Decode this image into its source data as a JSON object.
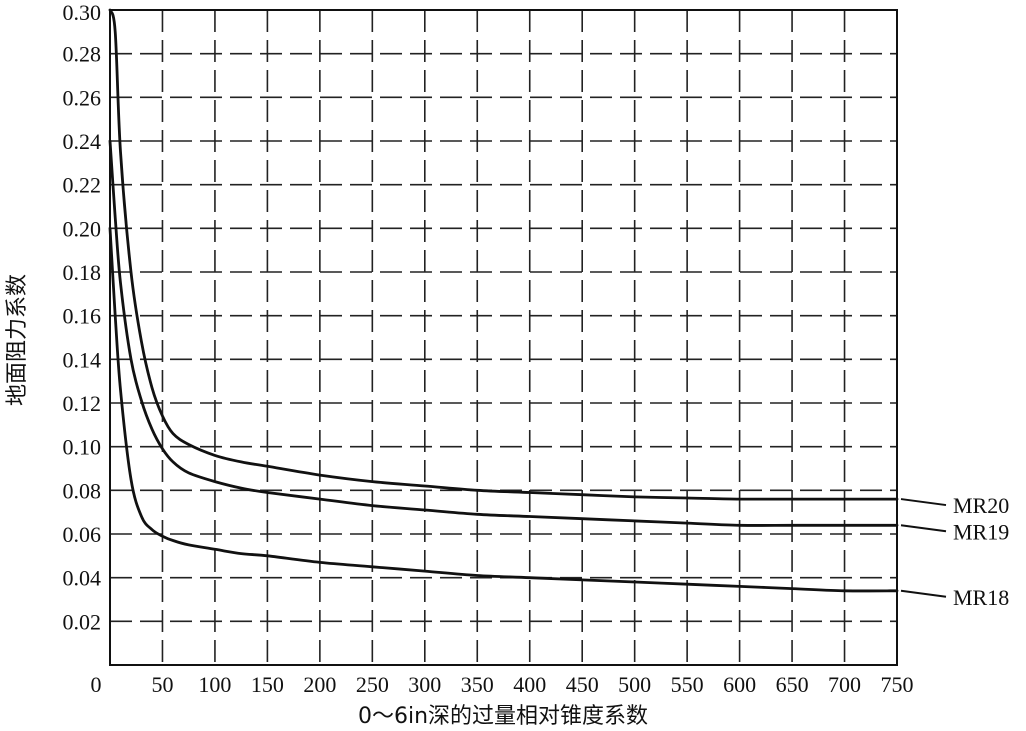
{
  "chart_data": {
    "type": "line",
    "xlabel": "0～6in深的过量相对锥度系数",
    "ylabel": "地面阻力系数",
    "xlim": [
      0,
      750
    ],
    "ylim": [
      0,
      0.3
    ],
    "x_ticks": [
      0,
      50,
      100,
      150,
      200,
      250,
      300,
      350,
      400,
      450,
      500,
      550,
      600,
      650,
      700,
      750
    ],
    "y_ticks": [
      0.02,
      0.04,
      0.06,
      0.08,
      0.1,
      0.12,
      0.14,
      0.16,
      0.18,
      0.2,
      0.22,
      0.24,
      0.26,
      0.28,
      0.3
    ],
    "x_tick_labels": [
      "0",
      "50",
      "100",
      "150",
      "200",
      "250",
      "300",
      "350",
      "400",
      "450",
      "500",
      "550",
      "600",
      "650",
      "700",
      "750"
    ],
    "y_tick_labels": [
      "0.02",
      "0.04",
      "0.06",
      "0.08",
      "0.10",
      "0.12",
      "0.14",
      "0.16",
      "0.18",
      "0.20",
      "0.22",
      "0.24",
      "0.26",
      "0.28",
      "0.30"
    ],
    "grid": true,
    "series": [
      {
        "name": "MR20",
        "x": [
          0,
          5,
          10,
          20,
          30,
          40,
          50,
          60,
          75,
          100,
          125,
          150,
          200,
          250,
          300,
          350,
          400,
          450,
          500,
          550,
          600,
          650,
          700,
          750
        ],
        "y": [
          0.3,
          0.29,
          0.235,
          0.18,
          0.148,
          0.127,
          0.114,
          0.106,
          0.101,
          0.096,
          0.093,
          0.091,
          0.087,
          0.084,
          0.082,
          0.08,
          0.079,
          0.078,
          0.077,
          0.0765,
          0.076,
          0.076,
          0.076,
          0.076
        ]
      },
      {
        "name": "MR19",
        "x": [
          0,
          5,
          10,
          20,
          30,
          40,
          50,
          60,
          75,
          100,
          125,
          150,
          200,
          250,
          300,
          350,
          400,
          450,
          500,
          550,
          600,
          650,
          700,
          750
        ],
        "y": [
          0.24,
          0.205,
          0.175,
          0.14,
          0.121,
          0.108,
          0.099,
          0.093,
          0.088,
          0.084,
          0.081,
          0.079,
          0.076,
          0.073,
          0.071,
          0.069,
          0.068,
          0.067,
          0.066,
          0.065,
          0.064,
          0.064,
          0.064,
          0.064
        ]
      },
      {
        "name": "MR18",
        "x": [
          0,
          5,
          10,
          20,
          30,
          40,
          50,
          60,
          75,
          100,
          125,
          150,
          200,
          250,
          300,
          350,
          400,
          450,
          500,
          550,
          600,
          650,
          700,
          750
        ],
        "y": [
          0.2,
          0.16,
          0.126,
          0.085,
          0.068,
          0.062,
          0.059,
          0.057,
          0.055,
          0.053,
          0.051,
          0.05,
          0.047,
          0.045,
          0.043,
          0.041,
          0.04,
          0.039,
          0.038,
          0.037,
          0.036,
          0.035,
          0.034,
          0.034
        ]
      }
    ]
  }
}
